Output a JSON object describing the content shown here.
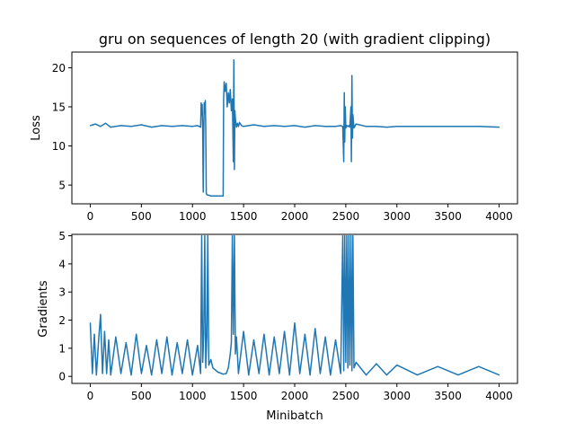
{
  "figure_title": "gru on sequences of length 20 (with gradient clipping)",
  "colors": {
    "line": "#1f77b4",
    "axes": "#000000",
    "background": "#ffffff"
  },
  "chart_data": [
    {
      "type": "line",
      "title": "gru on sequences of length 20 (with gradient clipping)",
      "xlabel": "",
      "ylabel": "Loss",
      "xlim": [
        -180,
        4180
      ],
      "ylim": [
        2.6,
        22.0
      ],
      "xticks": [
        0,
        500,
        1000,
        1500,
        2000,
        2500,
        3000,
        3500,
        4000
      ],
      "yticks": [
        5,
        10,
        15,
        20
      ],
      "grid": false,
      "series": [
        {
          "color": "#1f77b4",
          "x": [
            0,
            50,
            100,
            150,
            200,
            300,
            400,
            500,
            600,
            700,
            800,
            900,
            1000,
            1050,
            1080,
            1085,
            1090,
            1095,
            1100,
            1105,
            1110,
            1115,
            1120,
            1125,
            1130,
            1135,
            1140,
            1150,
            1160,
            1180,
            1200,
            1250,
            1300,
            1305,
            1310,
            1320,
            1330,
            1340,
            1350,
            1360,
            1370,
            1380,
            1390,
            1395,
            1400,
            1405,
            1410,
            1415,
            1420,
            1425,
            1430,
            1440,
            1450,
            1460,
            1480,
            1500,
            1600,
            1700,
            1800,
            1900,
            2000,
            2100,
            2200,
            2300,
            2400,
            2450,
            2470,
            2480,
            2485,
            2490,
            2495,
            2500,
            2510,
            2520,
            2530,
            2540,
            2550,
            2555,
            2560,
            2565,
            2570,
            2580,
            2600,
            2700,
            2800,
            2900,
            3000,
            3200,
            3400,
            3600,
            3800,
            4000
          ],
          "y": [
            12.6,
            12.8,
            12.5,
            12.9,
            12.4,
            12.6,
            12.5,
            12.7,
            12.4,
            12.6,
            12.5,
            12.6,
            12.5,
            12.6,
            12.4,
            15.5,
            14.0,
            15.3,
            12.2,
            4.1,
            12.0,
            15.5,
            14.2,
            15.8,
            12.5,
            3.9,
            3.8,
            3.7,
            3.7,
            3.6,
            3.6,
            3.6,
            3.6,
            15.8,
            18.2,
            17.0,
            18.0,
            15.0,
            16.8,
            15.5,
            17.2,
            14.5,
            16.0,
            12.0,
            8.0,
            21.0,
            7.0,
            14.5,
            13.5,
            12.8,
            12.4,
            12.9,
            12.5,
            13.0,
            12.6,
            12.5,
            12.7,
            12.5,
            12.6,
            12.5,
            12.6,
            12.4,
            12.6,
            12.5,
            12.5,
            12.6,
            12.5,
            8.0,
            16.8,
            10.5,
            15.0,
            12.3,
            12.6,
            12.5,
            12.6,
            12.4,
            15.0,
            8.0,
            19.0,
            11.0,
            14.0,
            12.3,
            12.8,
            12.5,
            12.5,
            12.4,
            12.5,
            12.5,
            12.5,
            12.5,
            12.5,
            12.4
          ]
        }
      ]
    },
    {
      "type": "line",
      "title": "",
      "xlabel": "Minibatch",
      "ylabel": "Gradients",
      "xlim": [
        -180,
        4180
      ],
      "ylim": [
        -0.25,
        5.05
      ],
      "xticks": [
        0,
        500,
        1000,
        1500,
        2000,
        2500,
        3000,
        3500,
        4000
      ],
      "yticks": [
        0,
        1,
        2,
        3,
        4,
        5
      ],
      "grid": false,
      "series": [
        {
          "color": "#1f77b4",
          "x": [
            0,
            20,
            40,
            60,
            80,
            100,
            120,
            140,
            160,
            180,
            200,
            250,
            300,
            350,
            400,
            450,
            500,
            550,
            600,
            650,
            700,
            750,
            800,
            850,
            900,
            950,
            1000,
            1050,
            1080,
            1090,
            1100,
            1110,
            1120,
            1130,
            1140,
            1150,
            1160,
            1180,
            1200,
            1250,
            1300,
            1330,
            1350,
            1370,
            1380,
            1390,
            1400,
            1410,
            1420,
            1430,
            1450,
            1500,
            1550,
            1600,
            1650,
            1700,
            1750,
            1800,
            1850,
            1900,
            1950,
            2000,
            2050,
            2100,
            2150,
            2200,
            2250,
            2300,
            2350,
            2400,
            2450,
            2470,
            2480,
            2490,
            2500,
            2510,
            2520,
            2530,
            2540,
            2550,
            2560,
            2570,
            2580,
            2600,
            2700,
            2800,
            2900,
            3000,
            3200,
            3400,
            3600,
            3800,
            4000
          ],
          "y": [
            1.9,
            0.1,
            1.5,
            0.05,
            1.2,
            2.2,
            0.1,
            1.6,
            0.1,
            1.3,
            0.05,
            1.4,
            0.1,
            1.2,
            0.05,
            1.5,
            0.1,
            1.1,
            0.05,
            1.3,
            0.1,
            1.4,
            0.05,
            1.2,
            0.1,
            1.3,
            0.05,
            1.1,
            0.1,
            5.0,
            0.5,
            1.5,
            5.0,
            0.3,
            1.4,
            5.0,
            0.4,
            0.6,
            0.3,
            0.15,
            0.08,
            0.1,
            0.3,
            0.8,
            1.2,
            5.0,
            1.5,
            5.0,
            0.8,
            1.4,
            0.1,
            1.6,
            0.05,
            1.3,
            0.1,
            1.5,
            0.05,
            1.4,
            0.1,
            1.6,
            0.05,
            1.9,
            0.1,
            1.5,
            0.05,
            1.7,
            0.1,
            1.4,
            0.05,
            1.3,
            0.1,
            5.0,
            0.2,
            5.0,
            0.5,
            5.0,
            0.3,
            5.0,
            0.4,
            5.0,
            0.2,
            5.0,
            0.3,
            0.5,
            0.05,
            0.45,
            0.05,
            0.4,
            0.05,
            0.35,
            0.05,
            0.35,
            0.05
          ]
        }
      ]
    }
  ]
}
